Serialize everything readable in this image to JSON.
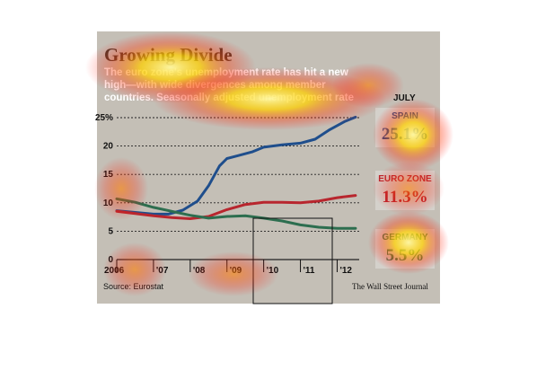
{
  "chart_data": {
    "type": "line",
    "title": "Growing Divide",
    "subtitle": "The euro zone's unemployment rate has hit a new high—with wide divergences among member countries. Seasonally adjusted unemployment rate",
    "column_header": "JULY",
    "x_tick_labels": [
      "2006",
      "'07",
      "'08",
      "'09",
      "'10",
      "'11",
      "'12"
    ],
    "y_tick_labels": [
      "0",
      "5",
      "10",
      "15",
      "20",
      "25%"
    ],
    "ylim": [
      0,
      25
    ],
    "xlim": [
      2006,
      2012.6
    ],
    "grid": true,
    "series": [
      {
        "name": "SPAIN",
        "value_label": "25.1%",
        "color": "#1f4e8c",
        "x": [
          2006.0,
          2006.5,
          2007.0,
          2007.4,
          2007.8,
          2008.2,
          2008.5,
          2008.8,
          2009.0,
          2009.3,
          2009.7,
          2010.0,
          2010.5,
          2011.0,
          2011.4,
          2011.8,
          2012.2,
          2012.5
        ],
        "y": [
          8.6,
          8.3,
          8.0,
          8.0,
          8.7,
          10.3,
          13.0,
          16.5,
          17.8,
          18.3,
          19.0,
          19.8,
          20.2,
          20.5,
          21.2,
          22.9,
          24.3,
          25.1
        ]
      },
      {
        "name": "EURO ZONE",
        "value_label": "11.3%",
        "color": "#b8262e",
        "x": [
          2006.0,
          2006.5,
          2007.0,
          2007.5,
          2008.0,
          2008.5,
          2009.0,
          2009.5,
          2010.0,
          2010.5,
          2011.0,
          2011.5,
          2012.0,
          2012.5
        ],
        "y": [
          8.5,
          8.1,
          7.7,
          7.4,
          7.2,
          7.6,
          8.8,
          9.7,
          10.1,
          10.1,
          10.0,
          10.3,
          10.9,
          11.3
        ]
      },
      {
        "name": "GERMANY",
        "value_label": "5.5%",
        "color": "#2d6e4f",
        "x": [
          2006.0,
          2006.5,
          2007.0,
          2007.5,
          2008.0,
          2008.5,
          2009.0,
          2009.5,
          2010.0,
          2010.5,
          2011.0,
          2011.5,
          2012.0,
          2012.5
        ],
        "y": [
          10.7,
          10.1,
          9.2,
          8.5,
          7.8,
          7.3,
          7.6,
          7.7,
          7.3,
          6.8,
          6.1,
          5.7,
          5.5,
          5.5
        ]
      }
    ]
  },
  "source": "Source: Eurostat",
  "credit": "The Wall Street Journal"
}
